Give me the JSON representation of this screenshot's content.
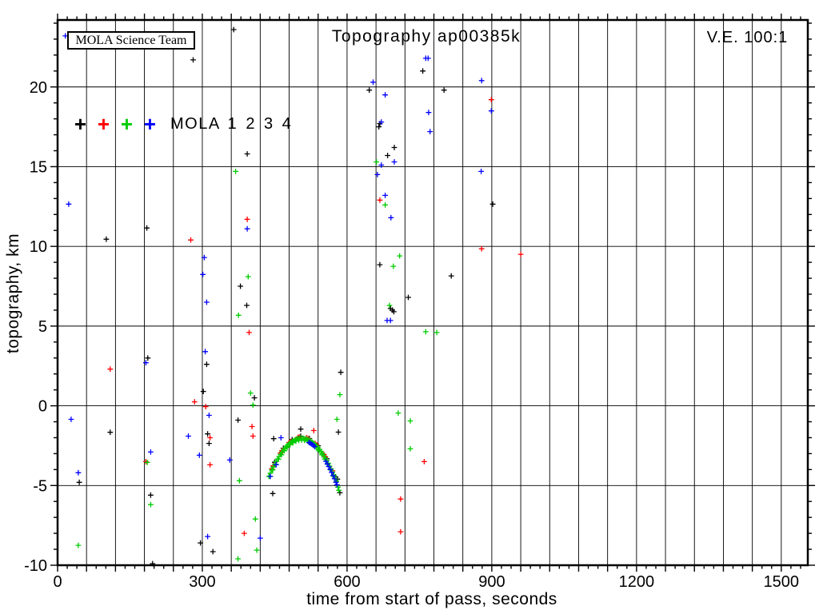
{
  "header": {
    "science_team_label": "MOLA Science Team",
    "ve_label": "V.E. 100:1"
  },
  "legend": {
    "label": "MOLA 1 2 3 4",
    "marker_glyph": "+"
  },
  "chart_data": {
    "type": "scatter",
    "title": "Topography ap00385k",
    "xlabel": "time from start of pass, seconds",
    "ylabel": "topography, km",
    "xlim": [
      0,
      1555
    ],
    "ylim": [
      -10,
      24.2
    ],
    "x_major_ticks": [
      0,
      300,
      600,
      900,
      1200,
      1500
    ],
    "x_grid_interval": 60,
    "x_minor_interval": 20,
    "y_major_ticks": [
      -10,
      -5,
      0,
      5,
      10,
      15,
      20
    ],
    "y_minor_interval": 1,
    "grid": true,
    "marker": "+",
    "series": [
      {
        "name": "MOLA 1",
        "color": "#000000",
        "points": [
          [
            365,
            23.6
          ],
          [
            281,
            21.7
          ],
          [
            757,
            21.0
          ],
          [
            646,
            19.8
          ],
          [
            801,
            19.8
          ],
          [
            668,
            17.7
          ],
          [
            666,
            17.5
          ],
          [
            698,
            16.2
          ],
          [
            684,
            15.7
          ],
          [
            393,
            15.8
          ],
          [
            902,
            12.65
          ],
          [
            185,
            11.15
          ],
          [
            101,
            10.45
          ],
          [
            668,
            8.85
          ],
          [
            816,
            8.15
          ],
          [
            379,
            7.5
          ],
          [
            727,
            6.8
          ],
          [
            392,
            6.3
          ],
          [
            690,
            6.1
          ],
          [
            694,
            6.0
          ],
          [
            697,
            5.9
          ],
          [
            187,
            3.0
          ],
          [
            309,
            2.6
          ],
          [
            587,
            2.1
          ],
          [
            302,
            0.9
          ],
          [
            408,
            0.5
          ],
          [
            374,
            -0.9
          ],
          [
            109,
            -1.66
          ],
          [
            311,
            -1.76
          ],
          [
            314,
            -2.36
          ],
          [
            448,
            -2.06
          ],
          [
            504,
            -1.46
          ],
          [
            582,
            -1.65
          ],
          [
            580,
            -4.6
          ],
          [
            446,
            -5.5
          ],
          [
            45,
            -4.8
          ],
          [
            193,
            -5.6
          ],
          [
            296,
            -8.6
          ],
          [
            322,
            -9.15
          ],
          [
            197,
            -9.9
          ],
          [
            450,
            -3.54
          ],
          [
            468,
            -2.66
          ],
          [
            486,
            -2.12
          ],
          [
            504,
            -1.91
          ],
          [
            522,
            -2.05
          ],
          [
            540,
            -2.51
          ],
          [
            558,
            -3.32
          ],
          [
            576,
            -4.46
          ],
          [
            585,
            -5.45
          ]
        ]
      },
      {
        "name": "MOLA 2",
        "color": "#ff0000",
        "points": [
          [
            899,
            19.2
          ],
          [
            668,
            12.9
          ],
          [
            393,
            11.7
          ],
          [
            276,
            10.4
          ],
          [
            879,
            9.85
          ],
          [
            960,
            9.5
          ],
          [
            397,
            4.6
          ],
          [
            109,
            2.3
          ],
          [
            284,
            0.25
          ],
          [
            307,
            -0.05
          ],
          [
            403,
            -1.3
          ],
          [
            405,
            -1.9
          ],
          [
            316,
            -2.0
          ],
          [
            531,
            -1.55
          ],
          [
            183,
            -3.5
          ],
          [
            316,
            -3.7
          ],
          [
            760,
            -3.5
          ],
          [
            387,
            -8.0
          ],
          [
            711,
            -5.85
          ],
          [
            711,
            -7.9
          ],
          [
            444,
            -3.95
          ],
          [
            447,
            -3.76
          ],
          [
            462,
            -2.96
          ],
          [
            465,
            -2.82
          ],
          [
            480,
            -2.3
          ],
          [
            483,
            -2.23
          ],
          [
            498,
            -1.98
          ],
          [
            501,
            -1.96
          ],
          [
            516,
            -2.0
          ],
          [
            519,
            -2.04
          ],
          [
            534,
            -2.36
          ],
          [
            537,
            -2.45
          ],
          [
            552,
            -3.05
          ],
          [
            555,
            -3.2
          ],
          [
            570,
            -4.08
          ]
        ]
      },
      {
        "name": "MOLA 3",
        "color": "#00cc00",
        "points": [
          [
            661,
            15.3
          ],
          [
            369,
            14.7
          ],
          [
            679,
            12.6
          ],
          [
            709,
            9.4
          ],
          [
            696,
            8.75
          ],
          [
            395,
            8.1
          ],
          [
            688,
            6.3
          ],
          [
            375,
            5.68
          ],
          [
            786,
            4.6
          ],
          [
            763,
            4.65
          ],
          [
            400,
            0.8
          ],
          [
            405,
            0.05
          ],
          [
            585,
            0.7
          ],
          [
            579,
            -0.85
          ],
          [
            706,
            -0.45
          ],
          [
            731,
            -0.95
          ],
          [
            731,
            -2.7
          ],
          [
            186,
            -3.55
          ],
          [
            377,
            -4.7
          ],
          [
            193,
            -6.2
          ],
          [
            410,
            -7.1
          ],
          [
            43,
            -8.75
          ],
          [
            413,
            -9.05
          ],
          [
            374,
            -9.6
          ],
          [
            438,
            -4.43
          ],
          [
            441,
            -4.23
          ],
          [
            444,
            -4.03
          ],
          [
            447,
            -3.84
          ],
          [
            450,
            -3.66
          ],
          [
            453,
            -3.49
          ],
          [
            456,
            -3.33
          ],
          [
            459,
            -3.18
          ],
          [
            462,
            -3.04
          ],
          [
            465,
            -2.9
          ],
          [
            468,
            -2.78
          ],
          [
            471,
            -2.67
          ],
          [
            474,
            -2.56
          ],
          [
            477,
            -2.47
          ],
          [
            480,
            -2.38
          ],
          [
            483,
            -2.31
          ],
          [
            486,
            -2.24
          ],
          [
            489,
            -2.18
          ],
          [
            492,
            -2.13
          ],
          [
            495,
            -2.09
          ],
          [
            498,
            -2.06
          ],
          [
            501,
            -2.04
          ],
          [
            504,
            -2.03
          ],
          [
            507,
            -2.03
          ],
          [
            510,
            -2.04
          ],
          [
            513,
            -2.06
          ],
          [
            516,
            -2.08
          ],
          [
            519,
            -2.12
          ],
          [
            522,
            -2.16
          ],
          [
            525,
            -2.22
          ],
          [
            528,
            -2.28
          ],
          [
            531,
            -2.36
          ],
          [
            534,
            -2.44
          ],
          [
            537,
            -2.53
          ],
          [
            540,
            -2.63
          ],
          [
            543,
            -2.74
          ],
          [
            546,
            -2.86
          ],
          [
            549,
            -2.99
          ],
          [
            552,
            -3.13
          ],
          [
            555,
            -3.28
          ],
          [
            558,
            -3.44
          ],
          [
            561,
            -3.6
          ],
          [
            564,
            -3.78
          ],
          [
            567,
            -3.96
          ],
          [
            570,
            -4.16
          ],
          [
            573,
            -4.36
          ],
          [
            576,
            -4.58
          ],
          [
            578,
            -4.73
          ],
          [
            440,
            -4.42
          ],
          [
            446,
            -4.02
          ],
          [
            452,
            -3.67
          ],
          [
            458,
            -3.35
          ],
          [
            464,
            -3.07
          ],
          [
            470,
            -2.82
          ],
          [
            476,
            -2.62
          ],
          [
            482,
            -2.45
          ],
          [
            488,
            -2.32
          ],
          [
            494,
            -2.22
          ],
          [
            500,
            -2.17
          ],
          [
            506,
            -2.15
          ],
          [
            512,
            -2.17
          ],
          [
            518,
            -2.22
          ],
          [
            524,
            -2.32
          ],
          [
            530,
            -2.45
          ],
          [
            536,
            -2.62
          ],
          [
            542,
            -2.82
          ],
          [
            548,
            -3.07
          ],
          [
            554,
            -3.35
          ],
          [
            560,
            -3.67
          ],
          [
            566,
            -4.02
          ],
          [
            572,
            -4.42
          ],
          [
            581,
            -5.1
          ],
          [
            583,
            -5.3
          ]
        ]
      },
      {
        "name": "MOLA 4",
        "color": "#0000ff",
        "points": [
          [
            16,
            23.2
          ],
          [
            763,
            21.8
          ],
          [
            768,
            21.8
          ],
          [
            654,
            20.3
          ],
          [
            879,
            20.4
          ],
          [
            679,
            19.5
          ],
          [
            899,
            18.5
          ],
          [
            769,
            18.4
          ],
          [
            671,
            17.8
          ],
          [
            772,
            17.2
          ],
          [
            698,
            15.3
          ],
          [
            671,
            15.1
          ],
          [
            878,
            14.7
          ],
          [
            663,
            14.5
          ],
          [
            679,
            13.2
          ],
          [
            23,
            12.65
          ],
          [
            691,
            11.8
          ],
          [
            393,
            11.1
          ],
          [
            304,
            9.3
          ],
          [
            301,
            8.24
          ],
          [
            309,
            6.5
          ],
          [
            683,
            5.35
          ],
          [
            690,
            5.35
          ],
          [
            306,
            3.4
          ],
          [
            183,
            2.7
          ],
          [
            28,
            -0.85
          ],
          [
            314,
            -0.6
          ],
          [
            271,
            -1.9
          ],
          [
            463,
            -2.0
          ],
          [
            193,
            -2.9
          ],
          [
            294,
            -3.1
          ],
          [
            357,
            -3.4
          ],
          [
            43,
            -4.2
          ],
          [
            311,
            -8.2
          ],
          [
            420,
            -8.3
          ],
          [
            441,
            -4.43
          ],
          [
            453,
            -3.69
          ],
          [
            521,
            -2.3
          ],
          [
            524,
            -2.35
          ],
          [
            527,
            -2.41
          ],
          [
            530,
            -2.48
          ],
          [
            533,
            -2.56
          ],
          [
            556,
            -3.48
          ],
          [
            559,
            -3.64
          ],
          [
            562,
            -3.81
          ],
          [
            565,
            -3.99
          ],
          [
            568,
            -4.18
          ],
          [
            571,
            -4.38
          ],
          [
            574,
            -4.58
          ],
          [
            577,
            -4.8
          ],
          [
            579,
            -4.95
          ]
        ]
      }
    ]
  }
}
